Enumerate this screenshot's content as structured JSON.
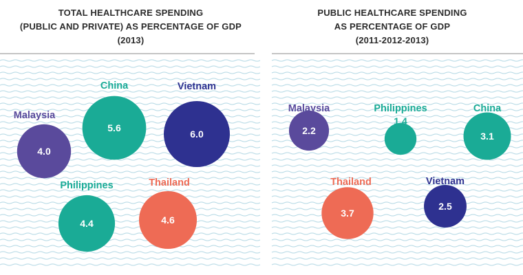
{
  "chart_data": [
    {
      "type": "bubble",
      "title_lines": [
        "TOTAL HEALTHCARE SPENDING",
        "(PUBLIC AND PRIVATE) AS PERCENTAGE OF GDP",
        "(2013)"
      ],
      "unit": "% of GDP",
      "points": [
        {
          "country": "Malaysia",
          "value": 4.0,
          "value_label": "4.0",
          "color": "#5a4a9c"
        },
        {
          "country": "China",
          "value": 5.6,
          "value_label": "5.6",
          "color": "#1aab96"
        },
        {
          "country": "Vietnam",
          "value": 6.0,
          "value_label": "6.0",
          "color": "#2e3190"
        },
        {
          "country": "Philippines",
          "value": 4.4,
          "value_label": "4.4",
          "color": "#1aab96"
        },
        {
          "country": "Thailand",
          "value": 4.6,
          "value_label": "4.6",
          "color": "#ee6b55"
        }
      ]
    },
    {
      "type": "bubble",
      "title_lines": [
        "PUBLIC HEALTHCARE SPENDING",
        "AS PERCENTAGE OF GDP",
        "(2011-2012-2013)"
      ],
      "unit": "% of GDP",
      "points": [
        {
          "country": "Malaysia",
          "value": 2.2,
          "value_label": "2.2",
          "color": "#5a4a9c"
        },
        {
          "country": "Philippines",
          "value": 1.4,
          "value_label": "1.4",
          "color": "#1aab96"
        },
        {
          "country": "China",
          "value": 3.1,
          "value_label": "3.1",
          "color": "#1aab96"
        },
        {
          "country": "Thailand",
          "value": 3.7,
          "value_label": "3.7",
          "color": "#ee6b55"
        },
        {
          "country": "Vietnam",
          "value": 2.5,
          "value_label": "2.5",
          "color": "#2e3190"
        }
      ]
    }
  ],
  "colors": {
    "wave": "#b9dbe6",
    "title_text": "#2b2b2b",
    "divider": "#8a8a8a"
  }
}
